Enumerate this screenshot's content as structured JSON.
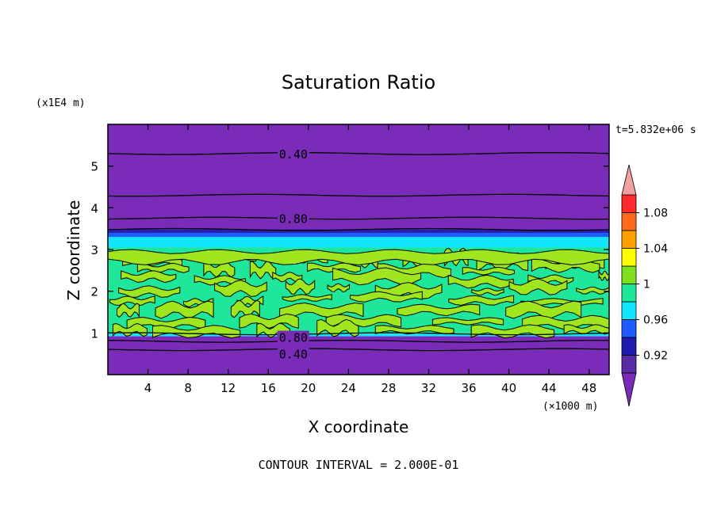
{
  "chart_data": {
    "type": "heatmap",
    "title": "Saturation Ratio",
    "xlabel": "X coordinate",
    "ylabel": "Z coordinate",
    "x_scale_note": "(×1000 m)",
    "y_scale_note": "(x1E4 m)",
    "time_label": "t=5.832e+06 s",
    "footer": "CONTOUR INTERVAL = 2.000E-01",
    "xlim": [
      0,
      50
    ],
    "ylim": [
      0,
      6
    ],
    "x_ticks": [
      4,
      8,
      12,
      16,
      20,
      24,
      28,
      32,
      36,
      40,
      44,
      48
    ],
    "y_ticks": [
      1,
      2,
      3,
      4,
      5
    ],
    "contour_interval": 0.2,
    "contour_labels": [
      {
        "text": "0.40",
        "x": 18.5,
        "z": 5.3
      },
      {
        "text": "0.80",
        "x": 18.5,
        "z": 3.75
      },
      {
        "text": "0.80",
        "x": 18.5,
        "z": 0.9
      },
      {
        "text": "0.40",
        "x": 18.5,
        "z": 0.5
      }
    ],
    "vertical_profile": [
      {
        "z_min": 0.0,
        "z_max": 0.92,
        "value": 0.4
      },
      {
        "z_min": 0.92,
        "z_max": 0.98,
        "value": 0.97
      },
      {
        "z_min": 0.98,
        "z_max": 3.05,
        "value": 1.0
      },
      {
        "z_min": 3.05,
        "z_max": 3.3,
        "value": 0.97
      },
      {
        "z_min": 3.3,
        "z_max": 3.45,
        "value": 0.93
      },
      {
        "z_min": 3.45,
        "z_max": 6.0,
        "value": 0.4
      }
    ],
    "colorbar": {
      "tick_labels": [
        "0.92",
        "0.96",
        "1",
        "1.04",
        "1.08"
      ],
      "tick_values": [
        0.92,
        0.96,
        1.0,
        1.04,
        1.08
      ],
      "levels": [
        0.9,
        0.92,
        0.94,
        0.96,
        0.98,
        1.0,
        1.02,
        1.04,
        1.06,
        1.08,
        1.1
      ],
      "colors": [
        "#5a2ba8",
        "#1f1ab0",
        "#1e5cff",
        "#12e6ff",
        "#1ee69a",
        "#7fe01e",
        "#ffff00",
        "#ffa000",
        "#ff6a1a",
        "#ff2a2a"
      ],
      "under_color": "#7a2bb8",
      "over_color": "#f2a0a0"
    },
    "palette": {
      "dry": "#7a2bb8",
      "dark_blue": "#2a1eb0",
      "blue": "#1e5cff",
      "cyan": "#12e6ff",
      "green": "#1ee69a",
      "lime": "#a0e61e"
    }
  }
}
